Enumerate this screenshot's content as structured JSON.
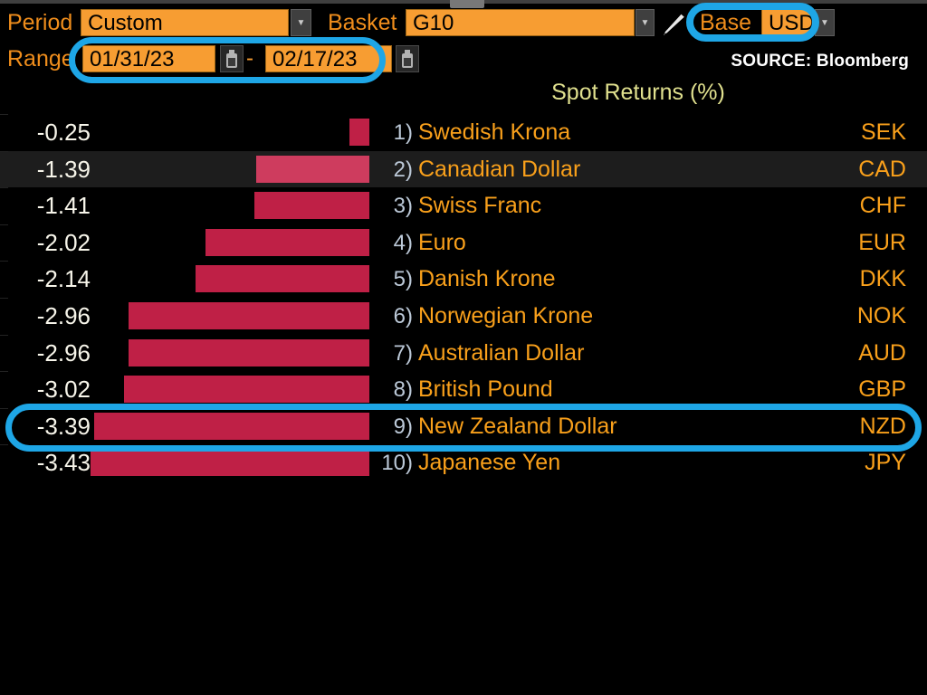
{
  "toolbar": {
    "period_label": "Period",
    "period_value": "Custom",
    "basket_label": "Basket",
    "basket_value": "G10",
    "base_label": "Base",
    "base_value": "USD",
    "range_label": "Range",
    "range_start": "01/31/23",
    "range_separator": "-",
    "range_end": "02/17/23"
  },
  "icons": {
    "dropdown_arrow": "▼"
  },
  "source_label": "SOURCE: Bloomberg",
  "chart_data": {
    "type": "bar",
    "orientation": "horizontal",
    "title": "Spot Returns (%)",
    "categories": [
      "Swedish Krona",
      "Canadian Dollar",
      "Swiss Franc",
      "Euro",
      "Danish Krone",
      "Norwegian Krone",
      "Australian Dollar",
      "British Pound",
      "New Zealand Dollar",
      "Japanese Yen"
    ],
    "codes": [
      "SEK",
      "CAD",
      "CHF",
      "EUR",
      "DKK",
      "NOK",
      "AUD",
      "GBP",
      "NZD",
      "JPY"
    ],
    "values": [
      -0.25,
      -1.39,
      -1.41,
      -2.02,
      -2.14,
      -2.96,
      -2.96,
      -3.02,
      -3.39,
      -3.43
    ],
    "xlim": [
      -3.43,
      0
    ],
    "grid": false,
    "legend": false,
    "highlighted_index": 1,
    "annotated_index": 8,
    "rows": [
      {
        "rank": "1)",
        "name": "Swedish Krona",
        "code": "SEK",
        "value": "-0.25"
      },
      {
        "rank": "2)",
        "name": "Canadian Dollar",
        "code": "CAD",
        "value": "-1.39"
      },
      {
        "rank": "3)",
        "name": "Swiss Franc",
        "code": "CHF",
        "value": "-1.41"
      },
      {
        "rank": "4)",
        "name": "Euro",
        "code": "EUR",
        "value": "-2.02"
      },
      {
        "rank": "5)",
        "name": "Danish Krone",
        "code": "DKK",
        "value": "-2.14"
      },
      {
        "rank": "6)",
        "name": "Norwegian Krone",
        "code": "NOK",
        "value": "-2.96"
      },
      {
        "rank": "7)",
        "name": "Australian Dollar",
        "code": "AUD",
        "value": "-2.96"
      },
      {
        "rank": "8)",
        "name": "British Pound",
        "code": "GBP",
        "value": "-3.02"
      },
      {
        "rank": "9)",
        "name": "New Zealand Dollar",
        "code": "NZD",
        "value": "-3.39"
      },
      {
        "rank": "10)",
        "name": "Japanese Yen",
        "code": "JPY",
        "value": "-3.43"
      }
    ]
  },
  "annotations": {
    "highlight_color": "#1ea6e6",
    "targets": [
      "range-dates",
      "base-currency-usd",
      "new-zealand-dollar-row"
    ]
  },
  "colors": {
    "field_orange": "#f79d32",
    "label_orange": "#ef8d1c",
    "name_orange": "#f9a01b",
    "bar_red": "#bf2046",
    "bar_red_highlighted": "#ce3c5e",
    "title_yellow": "#e0e08e",
    "rank_blue_white": "#bcc9d8",
    "row_highlight_bg": "#1d1d1d",
    "annotation_blue": "#1ea6e6"
  }
}
